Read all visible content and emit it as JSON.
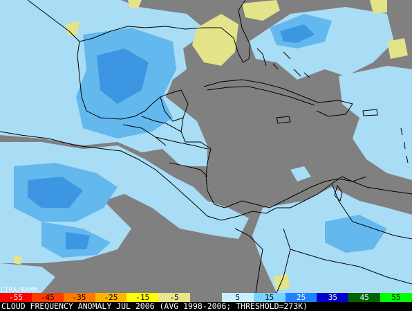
{
  "credit": "CIRA/RAMM",
  "caption": "CLOUD FREQUENCY ANOMALY JUL 2006 (AVG 1998-2006; THRESHOLD=273K)",
  "colorbar": {
    "bins": [
      {
        "label": "-55",
        "color": "#ff0000"
      },
      {
        "label": "-45",
        "color": "#ff3b00"
      },
      {
        "label": "-35",
        "color": "#ff7800"
      },
      {
        "label": "-25",
        "color": "#ffb400"
      },
      {
        "label": "-15",
        "color": "#ffff00"
      },
      {
        "label": "-5",
        "color": "#e6e68c"
      },
      {
        "label": "",
        "color": "#808080"
      },
      {
        "label": "5",
        "color": "#c8f0ff"
      },
      {
        "label": "15",
        "color": "#78d2ff"
      },
      {
        "label": "25",
        "color": "#1e82ff"
      },
      {
        "label": "35",
        "color": "#0000c8"
      },
      {
        "label": "45",
        "color": "#006400"
      },
      {
        "label": "55",
        "color": "#00ff00"
      }
    ]
  },
  "colors": {
    "land_neutral": "#808080",
    "positive_light": "#aee4f7",
    "positive_mid": "#5ab4f0",
    "positive_dark": "#2f8ee0",
    "negative_yellow": "#e6e68c",
    "coastline": "#000000"
  }
}
